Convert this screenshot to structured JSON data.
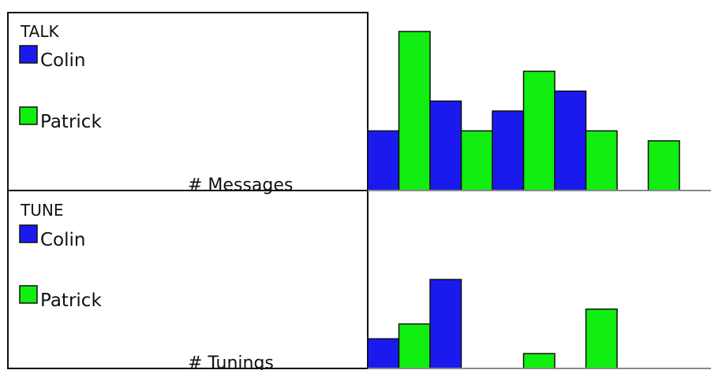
{
  "chart_data": [
    {
      "type": "bar",
      "panel_label": "TALK",
      "ylabel": "# Messages",
      "legend": [
        {
          "name": "Colin",
          "color": "#1a1aee"
        },
        {
          "name": "Patrick",
          "color": "#11ee11"
        }
      ],
      "values": [
        {
          "series": "Colin",
          "value": 3
        },
        {
          "series": "Patrick",
          "value": 8
        },
        {
          "series": "Colin",
          "value": 4.5
        },
        {
          "series": "Patrick",
          "value": 3
        },
        {
          "series": "Colin",
          "value": 4
        },
        {
          "series": "Patrick",
          "value": 6
        },
        {
          "series": "Colin",
          "value": 5
        },
        {
          "series": "Patrick",
          "value": 3
        },
        {
          "series": null,
          "value": 0
        },
        {
          "series": "Patrick",
          "value": 2.5
        }
      ],
      "ylim": [
        0,
        8
      ]
    },
    {
      "type": "bar",
      "panel_label": "TUNE",
      "ylabel": "# Tunings",
      "legend": [
        {
          "name": "Colin",
          "color": "#1a1aee"
        },
        {
          "name": "Patrick",
          "color": "#11ee11"
        }
      ],
      "values": [
        {
          "series": "Colin",
          "value": 1
        },
        {
          "series": "Patrick",
          "value": 1.5
        },
        {
          "series": "Colin",
          "value": 3
        },
        {
          "series": null,
          "value": 0
        },
        {
          "series": null,
          "value": 0
        },
        {
          "series": "Patrick",
          "value": 0.5
        },
        {
          "series": null,
          "value": 0
        },
        {
          "series": "Patrick",
          "value": 2
        },
        {
          "series": null,
          "value": 0
        },
        {
          "series": null,
          "value": 0
        }
      ],
      "ylim": [
        0,
        3
      ]
    }
  ]
}
